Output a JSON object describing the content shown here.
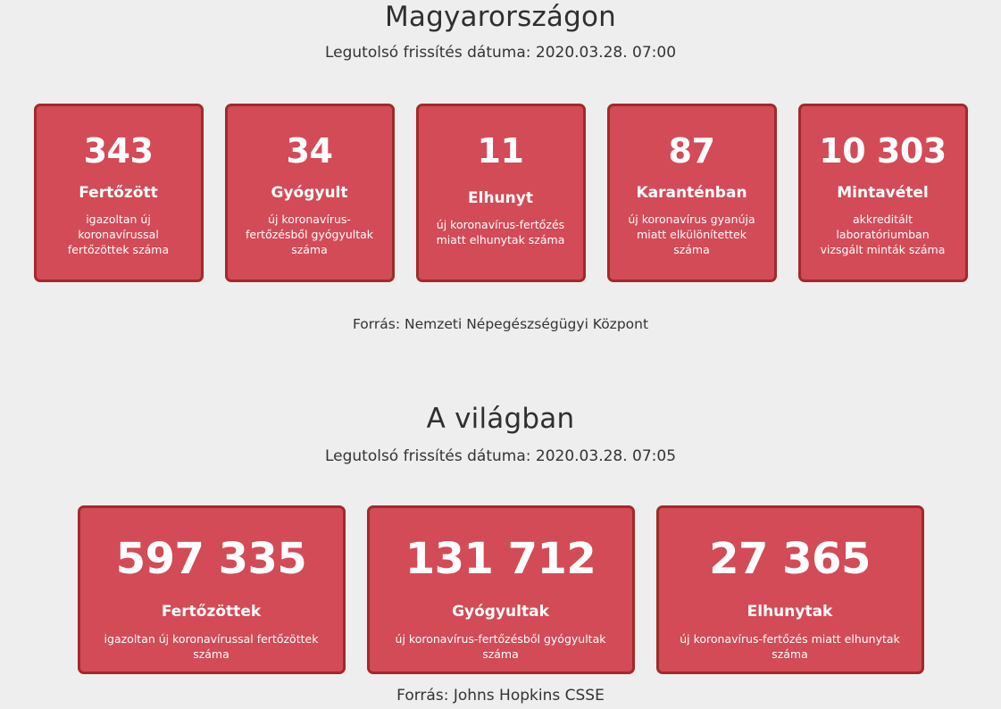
{
  "hungary": {
    "title": "Magyarországon",
    "updated": "Legutolsó frissítés dátuma: 2020.03.28. 07:00",
    "cards": [
      {
        "value": "343",
        "label": "Fertőzött",
        "description": "igazoltan új koronavírussal fertőzöttek száma"
      },
      {
        "value": "34",
        "label": "Gyógyult",
        "description": "új koronavírus-fertőzésből gyógyultak száma"
      },
      {
        "value": "11",
        "label": "Elhunyt",
        "description": "új koronavírus-fertőzés miatt elhunytak száma"
      },
      {
        "value": "87",
        "label": "Karanténban",
        "description": "új koronavírus gyanúja miatt elkülönítettek száma"
      },
      {
        "value": "10 303",
        "label": "Mintavétel",
        "description": "akkreditált laboratóriumban vizsgált minták száma"
      }
    ],
    "source": "Forrás: Nemzeti Népegészségügyi Központ"
  },
  "world": {
    "title": "A világban",
    "updated": "Legutolsó frissítés dátuma: 2020.03.28. 07:05",
    "cards": [
      {
        "value": "597 335",
        "label": "Fertőzöttek",
        "description": "igazoltan új koronavírussal fertőzöttek száma"
      },
      {
        "value": "131 712",
        "label": "Gyógyultak",
        "description": "új koronavírus-fertőzésből gyógyultak száma"
      },
      {
        "value": "27 365",
        "label": "Elhunytak",
        "description": "új koronavírus-fertőzés miatt elhunytak száma"
      }
    ],
    "source": "Forrás: Johns Hopkins CSSE"
  },
  "colors": {
    "card_background": "#d34b57",
    "card_border": "#a12a2c",
    "page_background": "#eeeeee"
  }
}
